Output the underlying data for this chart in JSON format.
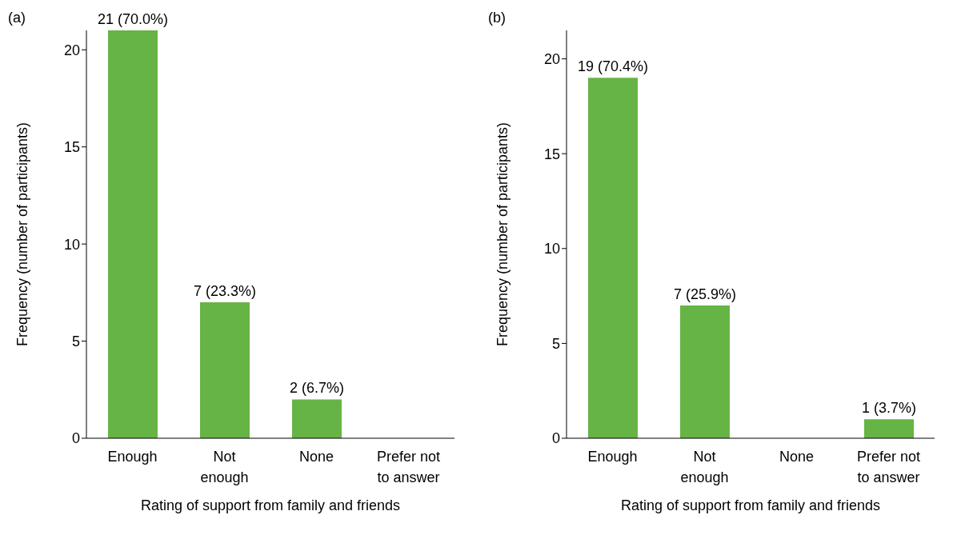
{
  "chart_data": [
    {
      "type": "bar",
      "title": "(a)",
      "xlabel": "Rating of support from family and friends",
      "ylabel": "Frequency (number of participants)",
      "categories": [
        "Enough",
        "Not enough",
        "None",
        "Prefer not to answer"
      ],
      "values": [
        21,
        7,
        2,
        0
      ],
      "value_labels": [
        "21 (70.0%)",
        "7 (23.3%)",
        "2 (6.7%)",
        null
      ],
      "color": "#66b445",
      "ylim": [
        0,
        21
      ],
      "yticks": [
        0,
        5,
        10,
        15,
        20
      ],
      "grid": false,
      "legend": false
    },
    {
      "type": "bar",
      "title": "(b)",
      "xlabel": "Rating of support from family and friends",
      "ylabel": "Frequency (number of participants)",
      "categories": [
        "Enough",
        "Not enough",
        "None",
        "Prefer not to answer"
      ],
      "values": [
        19,
        7,
        0,
        1
      ],
      "value_labels": [
        "19 (70.4%)",
        "7 (25.9%)",
        null,
        "1 (3.7%)"
      ],
      "color": "#66b445",
      "ylim": [
        0,
        21.5
      ],
      "yticks": [
        0,
        5,
        10,
        15,
        20
      ],
      "grid": false,
      "legend": false
    }
  ]
}
